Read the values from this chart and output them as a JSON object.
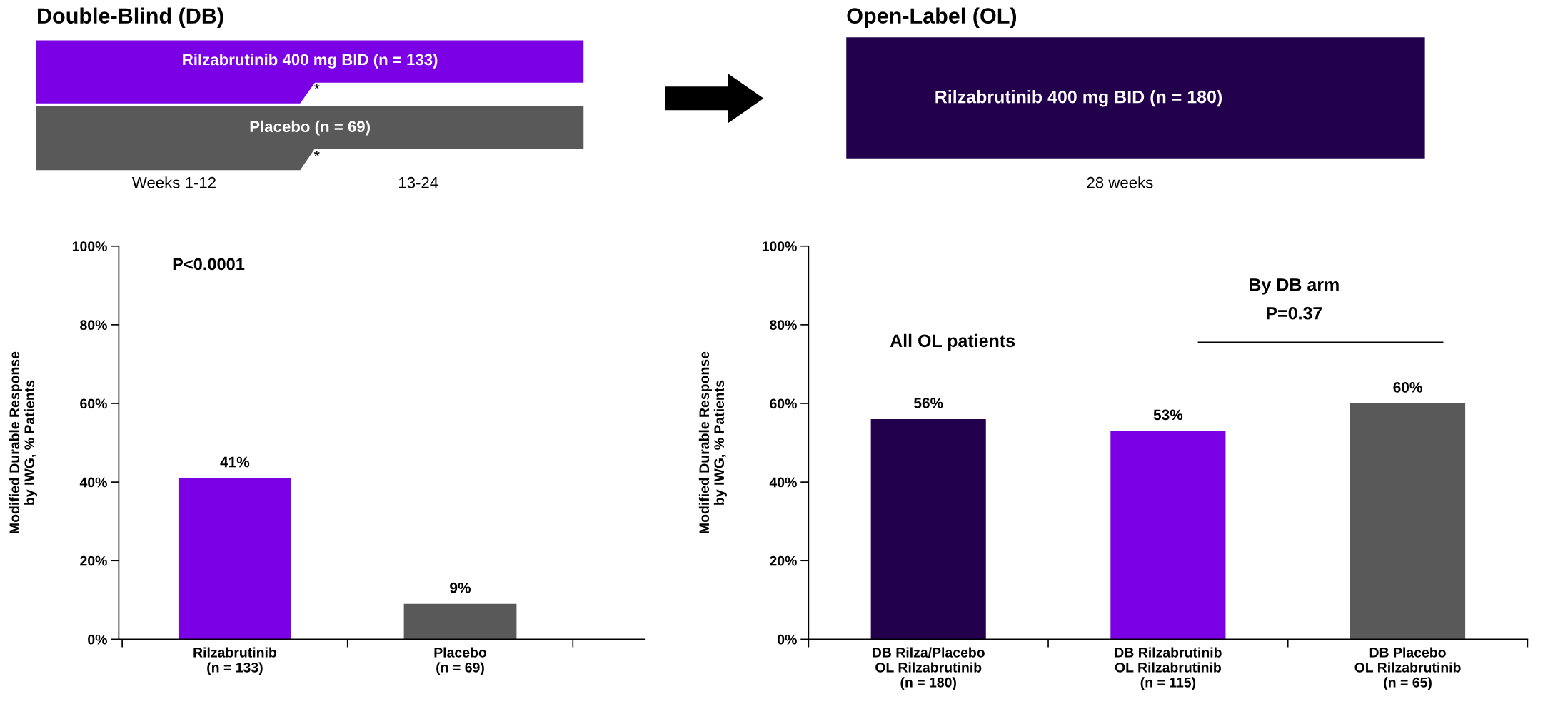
{
  "chart_data": [
    {
      "type": "bar",
      "title": "Double-Blind (DB)",
      "ylabel": "Modified Durable Response\nby IWG, % Patients",
      "categories": [
        "Rilzabrutinib\n(n = 133)",
        "Placebo\n(n = 69)"
      ],
      "values": [
        41,
        9
      ],
      "colors": [
        "#7b00e6",
        "#595959"
      ],
      "value_labels": [
        "41%",
        "9%"
      ],
      "ylim": [
        0,
        100
      ],
      "yticks": [
        {
          "value": 0,
          "label": "0%"
        },
        {
          "value": 20,
          "label": "20%"
        },
        {
          "value": 40,
          "label": "40%"
        },
        {
          "value": 60,
          "label": "60%"
        },
        {
          "value": 80,
          "label": "80%"
        },
        {
          "value": 100,
          "label": "100%"
        }
      ],
      "grid": false,
      "legend": false,
      "annotations": [
        "P<0.0001",
        "Rilzabrutinib 400 mg BID (n = 133)",
        "Placebo (n = 69)",
        "*",
        "*",
        "Weeks 1-12",
        "13-24"
      ]
    },
    {
      "type": "bar",
      "title": "Open-Label (OL)",
      "ylabel": "Modified Durable Response\nby IWG, % Patients",
      "categories": [
        "DB Rilza/Placebo\nOL Rilzabrutinib\n(n = 180)",
        "DB Rilzabrutinib\nOL Rilzabrutinib\n(n = 115)",
        "DB Placebo\nOL Rilzabrutinib\n(n = 65)"
      ],
      "values": [
        56,
        53,
        60
      ],
      "colors": [
        "#23004c",
        "#7b00e6",
        "#595959"
      ],
      "value_labels": [
        "56%",
        "53%",
        "60%"
      ],
      "ylim": [
        0,
        100
      ],
      "yticks": [
        {
          "value": 0,
          "label": "0%"
        },
        {
          "value": 20,
          "label": "20%"
        },
        {
          "value": 40,
          "label": "40%"
        },
        {
          "value": 60,
          "label": "60%"
        },
        {
          "value": 80,
          "label": "80%"
        },
        {
          "value": 100,
          "label": "100%"
        }
      ],
      "grid": false,
      "legend": false,
      "annotations": [
        "Rilzabrutinib 400 mg BID (n = 180)",
        "28 weeks",
        "All OL patients",
        "By DB arm",
        "P=0.37"
      ]
    }
  ]
}
